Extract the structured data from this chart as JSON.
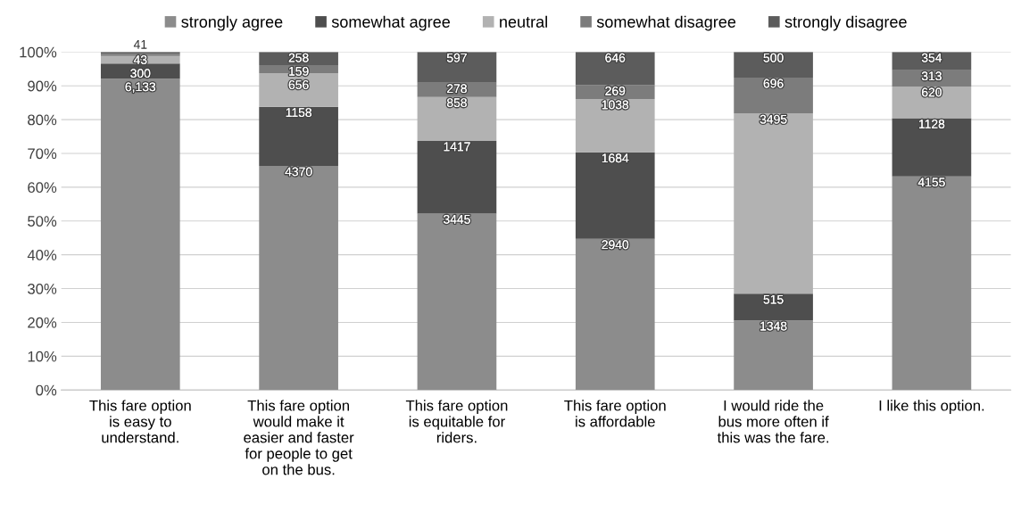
{
  "chart_data": {
    "type": "bar",
    "stacked": true,
    "categories": [
      "This fare option\nis easy to\nunderstand.",
      "This fare option\nwould make it\neasier and faster\nfor people to get\non the bus.",
      "This fare option\nis equitable for\nriders.",
      "This fare option\nis affordable",
      "I would ride the\nbus more often if\nthis was the fare.",
      "I like this option."
    ],
    "series": [
      {
        "name": "strongly agree",
        "color": "#8c8c8c",
        "values": [
          92.1,
          66.3,
          52.2,
          44.7,
          20.6,
          63.2
        ]
      },
      {
        "name": "somewhat agree",
        "color": "#4e4e4e",
        "values": [
          4.5,
          17.5,
          21.5,
          25.6,
          7.9,
          17.2
        ]
      },
      {
        "name": "neutral",
        "color": "#b2b2b2",
        "values": [
          2.2,
          9.9,
          13.0,
          15.8,
          53.3,
          9.4
        ]
      },
      {
        "name": "somewhat disagree",
        "color": "#7c7c7c",
        "values": [
          0.6,
          2.4,
          4.2,
          4.1,
          10.6,
          4.8
        ]
      },
      {
        "name": "strongly disagree",
        "color": "#5c5c5c",
        "values": [
          0.6,
          3.9,
          9.1,
          9.8,
          7.6,
          5.4
        ]
      }
    ],
    "annotations": [
      {
        "text": "6,133",
        "x": "This fare option\nis easy to\nunderstand.",
        "y": 92.1
      },
      {
        "text": "300",
        "x": "This fare option\nis easy to\nunderstand.",
        "y": 96.6
      },
      {
        "text": "43",
        "x": "This fare option\nis easy to\nunderstand.",
        "y": 99.4
      },
      {
        "text": "41",
        "x": "This fare option\nis easy to\nunderstand.",
        "y": 100.0
      },
      {
        "text": "4370",
        "x": "This fare option\nwould make it\neasier and faster\nfor people to get\non the bus.",
        "y": 66.3
      },
      {
        "text": "1158",
        "x": "This fare option\nwould make it\neasier and faster\nfor people to get\non the bus.",
        "y": 83.8
      },
      {
        "text": "656",
        "x": "This fare option\nwould make it\neasier and faster\nfor people to get\non the bus.",
        "y": 93.7
      },
      {
        "text": "159",
        "x": "This fare option\nwould make it\neasier and faster\nfor people to get\non the bus.",
        "y": 96.1
      },
      {
        "text": "258",
        "x": "This fare option\nwould make it\neasier and faster\nfor people to get\non the bus.",
        "y": 100.0
      },
      {
        "text": "3445",
        "x": "This fare option\nis equitable for\nriders.",
        "y": 52.2
      },
      {
        "text": "1417",
        "x": "This fare option\nis equitable for\nriders.",
        "y": 73.7
      },
      {
        "text": "858",
        "x": "This fare option\nis equitable for\nriders.",
        "y": 86.7
      },
      {
        "text": "278",
        "x": "This fare option\nis equitable for\nriders.",
        "y": 90.9
      },
      {
        "text": "597",
        "x": "This fare option\nis equitable for\nriders.",
        "y": 100.0
      },
      {
        "text": "2940",
        "x": "This fare option\nis affordable",
        "y": 44.7
      },
      {
        "text": "1684",
        "x": "This fare option\nis affordable",
        "y": 70.3
      },
      {
        "text": "1038",
        "x": "This fare option\nis affordable",
        "y": 86.1
      },
      {
        "text": "269",
        "x": "This fare option\nis affordable",
        "y": 90.2
      },
      {
        "text": "646",
        "x": "This fare option\nis affordable",
        "y": 100.0
      },
      {
        "text": "1348",
        "x": "I would ride the\nbus more often if\nthis was the fare.",
        "y": 20.6
      },
      {
        "text": "515",
        "x": "I would ride the\nbus more often if\nthis was the fare.",
        "y": 28.5
      },
      {
        "text": "3495",
        "x": "I would ride the\nbus more often if\nthis was the fare.",
        "y": 81.8
      },
      {
        "text": "696",
        "x": "I would ride the\nbus more often if\nthis was the fare.",
        "y": 92.4
      },
      {
        "text": "500",
        "x": "I would ride the\nbus more often if\nthis was the fare.",
        "y": 100.0
      },
      {
        "text": "4155",
        "x": "I like this option.",
        "y": 63.2
      },
      {
        "text": "1128",
        "x": "I like this option.",
        "y": 80.4
      },
      {
        "text": "620",
        "x": "I like this option.",
        "y": 89.8
      },
      {
        "text": "313",
        "x": "I like this option.",
        "y": 94.6
      },
      {
        "text": "354",
        "x": "I like this option.",
        "y": 100.0
      }
    ],
    "ylim": [
      0,
      100
    ],
    "yticks": [
      {
        "value": 0,
        "label": "0%"
      },
      {
        "value": 10,
        "label": "10%"
      },
      {
        "value": 20,
        "label": "20%"
      },
      {
        "value": 30,
        "label": "30%"
      },
      {
        "value": 40,
        "label": "40%"
      },
      {
        "value": 50,
        "label": "50%"
      },
      {
        "value": 60,
        "label": "60%"
      },
      {
        "value": 70,
        "label": "70%"
      },
      {
        "value": 80,
        "label": "80%"
      },
      {
        "value": 90,
        "label": "90%"
      },
      {
        "value": 100,
        "label": "100%"
      }
    ],
    "grid": "y",
    "legend": "top"
  }
}
